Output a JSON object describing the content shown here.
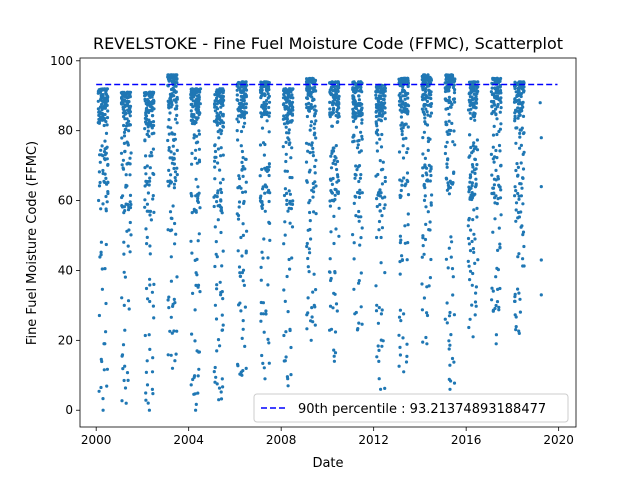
{
  "chart_data": {
    "type": "scatter",
    "title": "REVELSTOKE - Fine Fuel Moisture Code (FFMC), Scatterplot",
    "xlabel": "Date",
    "ylabel": "Fine Fuel Moisture Code (FFMC)",
    "xlim": [
      1999.3,
      2020.75
    ],
    "ylim": [
      -4.8,
      100.8
    ],
    "xticks": [
      2000,
      2004,
      2008,
      2012,
      2016,
      2020
    ],
    "xtick_labels": [
      "2000",
      "2004",
      "2008",
      "2012",
      "2016",
      "2020"
    ],
    "yticks": [
      0,
      20,
      40,
      60,
      80,
      100
    ],
    "ytick_labels": [
      "0",
      "20",
      "40",
      "60",
      "80",
      "100"
    ],
    "point_color": "#1f77b4",
    "reference_line": {
      "label": "90th percentile : 93.21374893188477",
      "value": 93.21374893188477,
      "color": "#0000ff",
      "style": "dashed"
    },
    "legend_position": "lower-right",
    "grid": false,
    "series": [
      {
        "points_note": "",
        "seasons": [
          {
            "x": 2000.3,
            "top": 92,
            "low": 0
          },
          {
            "x": 2001.3,
            "top": 91,
            "low": 2
          },
          {
            "x": 2002.3,
            "top": 91,
            "low": 0
          },
          {
            "x": 2003.3,
            "top": 96,
            "low": 12
          },
          {
            "x": 2004.3,
            "top": 92,
            "low": 0
          },
          {
            "x": 2005.3,
            "top": 92,
            "low": 3
          },
          {
            "x": 2006.3,
            "top": 94,
            "low": 10
          },
          {
            "x": 2007.3,
            "top": 94,
            "low": 9
          },
          {
            "x": 2008.3,
            "top": 92,
            "low": 7
          },
          {
            "x": 2009.3,
            "top": 95,
            "low": 20
          },
          {
            "x": 2010.3,
            "top": 94,
            "low": 14
          },
          {
            "x": 2011.3,
            "top": 94,
            "low": 23
          },
          {
            "x": 2012.3,
            "top": 93,
            "low": 6
          },
          {
            "x": 2013.3,
            "top": 95,
            "low": 11
          },
          {
            "x": 2014.3,
            "top": 96,
            "low": 19
          },
          {
            "x": 2015.3,
            "top": 96,
            "low": 6
          },
          {
            "x": 2016.3,
            "top": 94,
            "low": 21
          },
          {
            "x": 2017.3,
            "top": 95,
            "low": 19
          },
          {
            "x": 2018.3,
            "top": 94,
            "low": 22
          }
        ]
      },
      {
        "extra_points": [
          [
            2019.2,
            88
          ],
          [
            2019.25,
            78
          ],
          [
            2019.25,
            64
          ],
          [
            2019.25,
            43
          ],
          [
            2019.25,
            33
          ]
        ]
      }
    ]
  }
}
